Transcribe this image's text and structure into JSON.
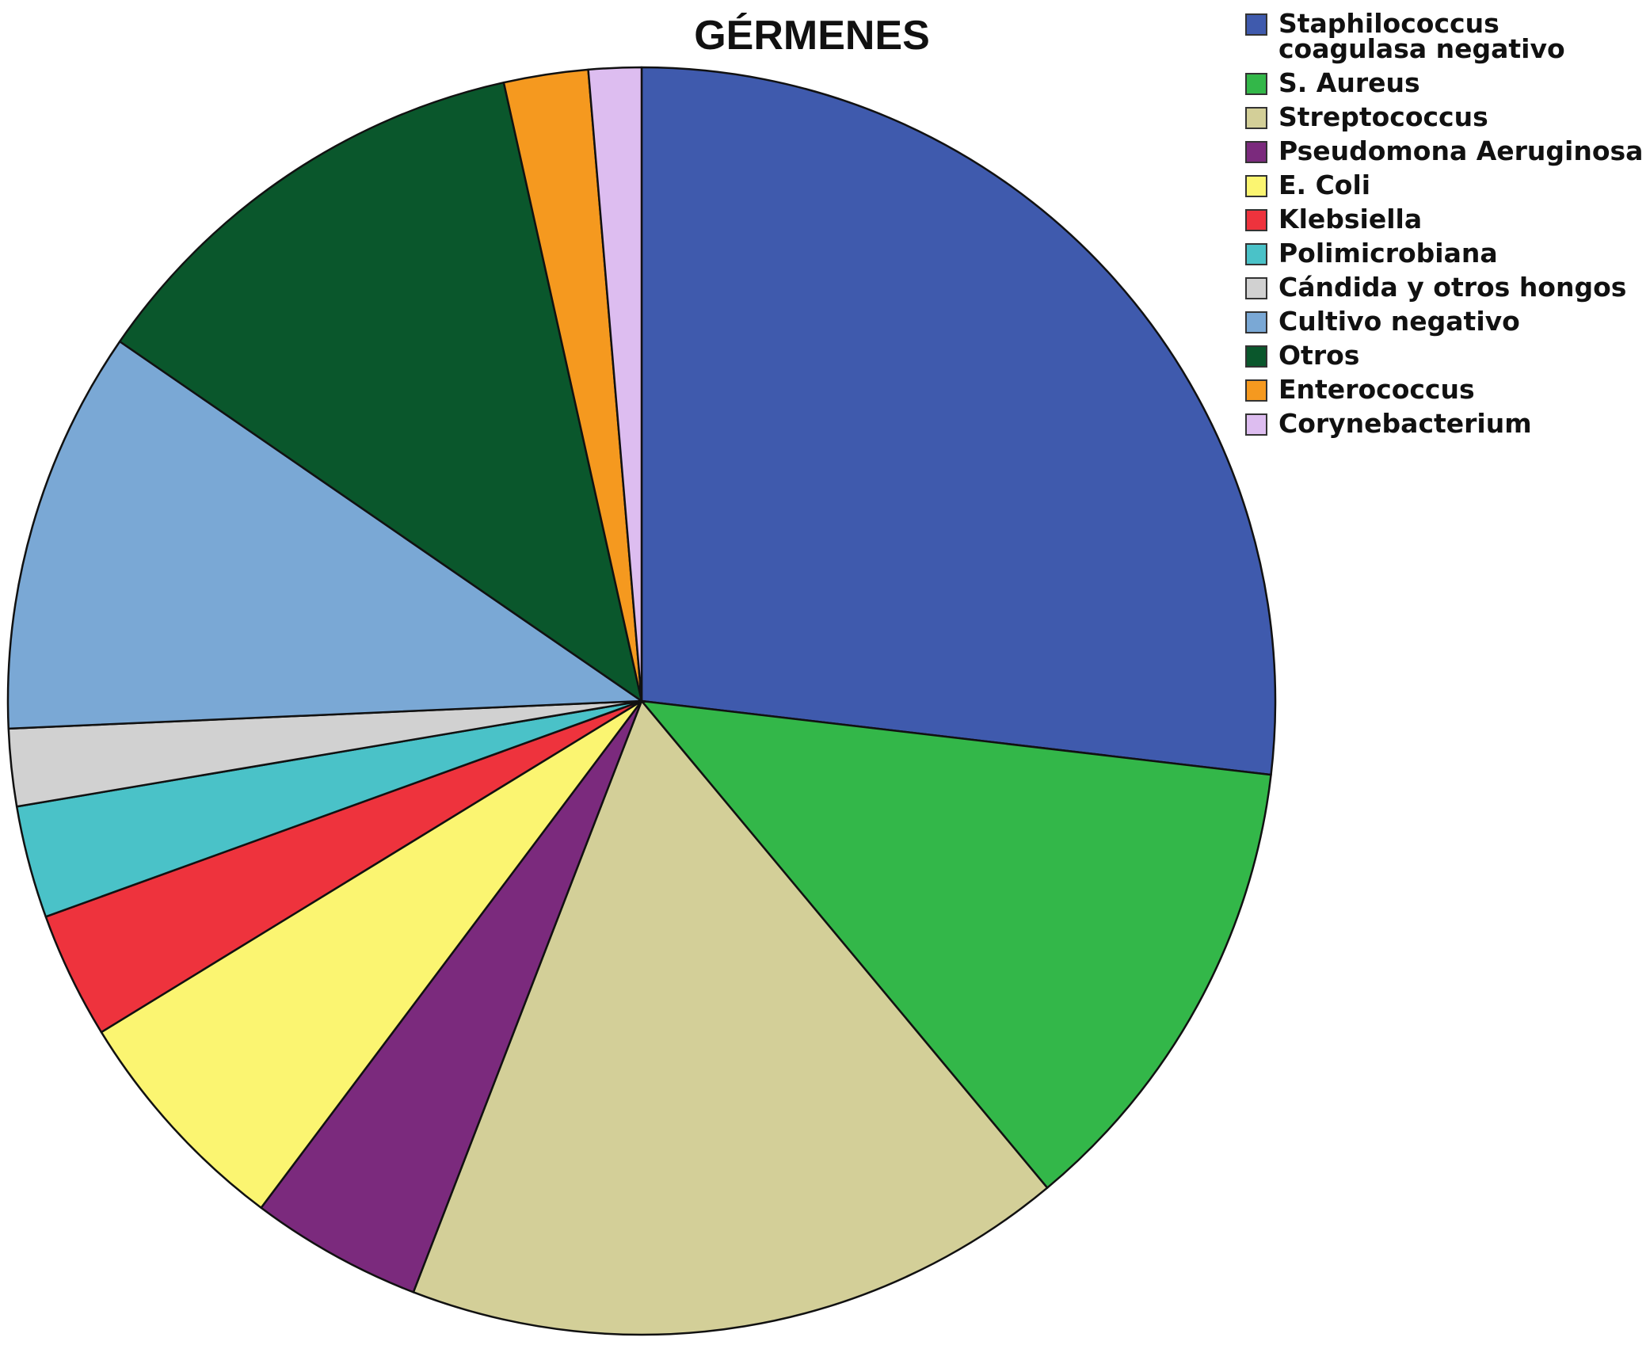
{
  "chart_data": {
    "type": "pie",
    "title": "GÉRMENES",
    "legend_position": "top-right",
    "start": "12 o'clock",
    "direction": "clockwise",
    "slices": [
      {
        "label": "Staphilococcus coagulasa negativo",
        "value": 30.0,
        "color": "#3f5aad"
      },
      {
        "label": "S. Aureus",
        "value": 13.5,
        "color": "#33b749"
      },
      {
        "label": "Streptococcus",
        "value": 18.9,
        "color": "#d3cf98"
      },
      {
        "label": "Pseudomona Aeruginosa",
        "value": 4.9,
        "color": "#7b2a7d"
      },
      {
        "label": "E. Coli",
        "value": 6.7,
        "color": "#fbf571"
      },
      {
        "label": "Klebsiella",
        "value": 3.6,
        "color": "#ee333d"
      },
      {
        "label": "Polimicrobiana",
        "value": 3.2,
        "color": "#4ac2c8"
      },
      {
        "label": "Cándida y otros hongos",
        "value": 2.2,
        "color": "#d1d1d1"
      },
      {
        "label": "Cultivo negativo",
        "value": 11.5,
        "color": "#7aa8d5"
      },
      {
        "label": "Otros",
        "value": 13.3,
        "color": "#0a572c"
      },
      {
        "label": "Enterococcus",
        "value": 2.4,
        "color": "#f5991f"
      },
      {
        "label": "Corynebacterium",
        "value": 1.5,
        "color": "#ddbdf0"
      }
    ]
  }
}
